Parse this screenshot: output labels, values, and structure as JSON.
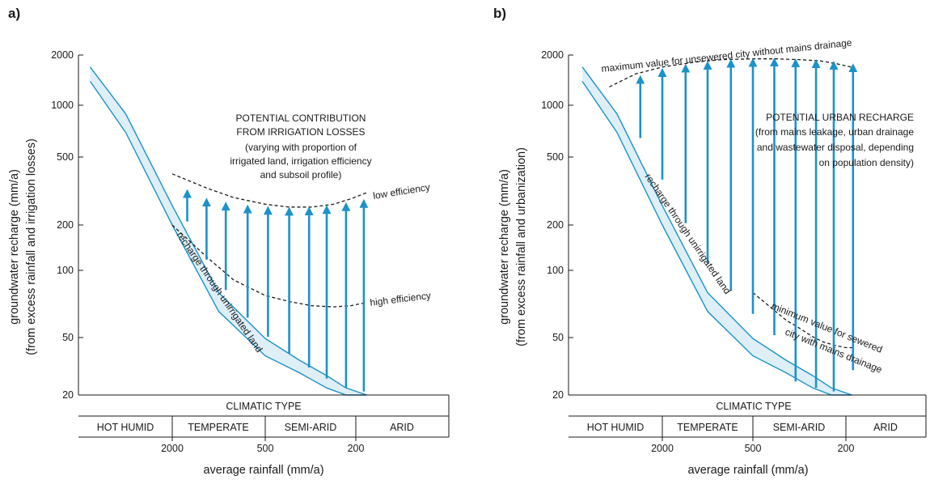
{
  "colors": {
    "accent": "#1b92c9",
    "band_fill": "#deeff8",
    "line": "#1a1a1a"
  },
  "chart_data": [
    {
      "panel_label": "a)",
      "type": "area",
      "ylabel_lines": [
        "groundwater recharge (mm/a)",
        "(from excess rainfall and irrigation losses)"
      ],
      "yscale": "log",
      "ylim": [
        20,
        2000
      ],
      "yticks": [
        20,
        50,
        100,
        200,
        500,
        1000,
        2000
      ],
      "ytick_labels": [
        "20",
        "50",
        "100",
        "200",
        "500",
        "1000",
        "2000"
      ],
      "xlabel": "average rainfall (mm/a)",
      "xscale": "log",
      "x_reversed": true,
      "xticks": [
        2000,
        500,
        200
      ],
      "xtick_labels": [
        "2000",
        "500",
        "200"
      ],
      "climatic_header": "CLIMATIC TYPE",
      "climatic_types": [
        "HOT HUMID",
        "TEMPERATE",
        "SEMI-ARID",
        "ARID"
      ],
      "band_label": "recharge through unirrigated land",
      "band": {
        "x": [
          6800,
          4000,
          2000,
          1000,
          500,
          300,
          200,
          150,
          110
        ],
        "upper": [
          1700,
          900,
          260,
          80,
          43,
          32,
          26,
          22,
          20
        ],
        "lower": [
          1400,
          700,
          200,
          62,
          34,
          27,
          22,
          20,
          20
        ]
      },
      "curves": [
        {
          "name": "low efficiency",
          "x": [
            2000,
            1200,
            800,
            500,
            350,
            250,
            180,
            140,
            110
          ],
          "y": [
            400,
            330,
            290,
            265,
            255,
            255,
            265,
            285,
            310
          ]
        },
        {
          "name": "high efficiency",
          "x": [
            2000,
            1200,
            800,
            500,
            350,
            250,
            180,
            140,
            110
          ],
          "y": [
            200,
            130,
            95,
            77,
            71,
            67,
            66,
            67,
            70
          ]
        }
      ],
      "annotations": [
        "POTENTIAL CONTRIBUTION",
        "FROM IRRIGATION LOSSES",
        "(varying with proportion of",
        "irrigated land, irrigation efficiency",
        "and subsoil profile)"
      ],
      "arrows": [
        {
          "x": 1600,
          "y_from": 210,
          "y_to": 320
        },
        {
          "x": 1200,
          "y_from": 125,
          "y_to": 285
        },
        {
          "x": 900,
          "y_from": 83,
          "y_to": 270
        },
        {
          "x": 650,
          "y_from": 57,
          "y_to": 260
        },
        {
          "x": 480,
          "y_from": 44,
          "y_to": 255
        },
        {
          "x": 350,
          "y_from": 35,
          "y_to": 252
        },
        {
          "x": 260,
          "y_from": 29,
          "y_to": 253
        },
        {
          "x": 200,
          "y_from": 25,
          "y_to": 258
        },
        {
          "x": 150,
          "y_from": 22,
          "y_to": 268
        },
        {
          "x": 115,
          "y_from": 21,
          "y_to": 280
        }
      ]
    },
    {
      "panel_label": "b)",
      "type": "area",
      "ylabel_lines": [
        "groundwater recharge (mm/a)",
        "(from excess rainfall and urbanization)"
      ],
      "yscale": "log",
      "ylim": [
        20,
        2000
      ],
      "yticks": [
        20,
        50,
        100,
        200,
        500,
        1000,
        2000
      ],
      "ytick_labels": [
        "20",
        "50",
        "100",
        "200",
        "500",
        "1000",
        "2000"
      ],
      "xlabel": "average rainfall (mm/a)",
      "xscale": "log",
      "x_reversed": true,
      "xticks": [
        2000,
        500,
        200
      ],
      "xtick_labels": [
        "2000",
        "500",
        "200"
      ],
      "climatic_header": "CLIMATIC TYPE",
      "climatic_types": [
        "HOT HUMID",
        "TEMPERATE",
        "SEMI-ARID",
        "ARID"
      ],
      "band_label": "recharge through unirrigated land",
      "band": {
        "x": [
          6800,
          4000,
          2000,
          1000,
          500,
          300,
          200,
          150,
          110
        ],
        "upper": [
          1700,
          900,
          260,
          80,
          43,
          32,
          26,
          22,
          20
        ],
        "lower": [
          1400,
          700,
          200,
          62,
          34,
          27,
          22,
          20,
          20
        ]
      },
      "curves": [
        {
          "name": "maximum value for unsewered city without mains drainage",
          "x": [
            4500,
            3000,
            2000,
            1200,
            800,
            500,
            350,
            250,
            180,
            140,
            105
          ],
          "y": [
            1300,
            1550,
            1700,
            1820,
            1880,
            1900,
            1900,
            1880,
            1850,
            1780,
            1680
          ]
        },
        {
          "name": "minimum value for sewered city with mains drainage",
          "x": [
            500,
            400,
            300,
            250,
            200,
            170,
            140,
            120,
            105
          ],
          "y": [
            80,
            68,
            55,
            50,
            44,
            41,
            39,
            38,
            38
          ]
        }
      ],
      "annotations": [
        "POTENTIAL URBAN RECHARGE",
        "(from mains leakage, urban drainage",
        "and wastewater disposal, depending",
        "on population density)"
      ],
      "arrows": [
        {
          "x": 2800,
          "y_from": 650,
          "y_to": 1500
        },
        {
          "x": 2000,
          "y_from": 370,
          "y_to": 1650
        },
        {
          "x": 1400,
          "y_from": 205,
          "y_to": 1750
        },
        {
          "x": 1000,
          "y_from": 120,
          "y_to": 1820
        },
        {
          "x": 700,
          "y_from": 82,
          "y_to": 1870
        },
        {
          "x": 500,
          "y_from": 60,
          "y_to": 1890
        },
        {
          "x": 360,
          "y_from": 45,
          "y_to": 1900
        },
        {
          "x": 260,
          "y_from": 24,
          "y_to": 1880
        },
        {
          "x": 190,
          "y_from": 22,
          "y_to": 1860
        },
        {
          "x": 145,
          "y_from": 21,
          "y_to": 1820
        },
        {
          "x": 108,
          "y_from": 28,
          "y_to": 1760
        }
      ]
    }
  ]
}
